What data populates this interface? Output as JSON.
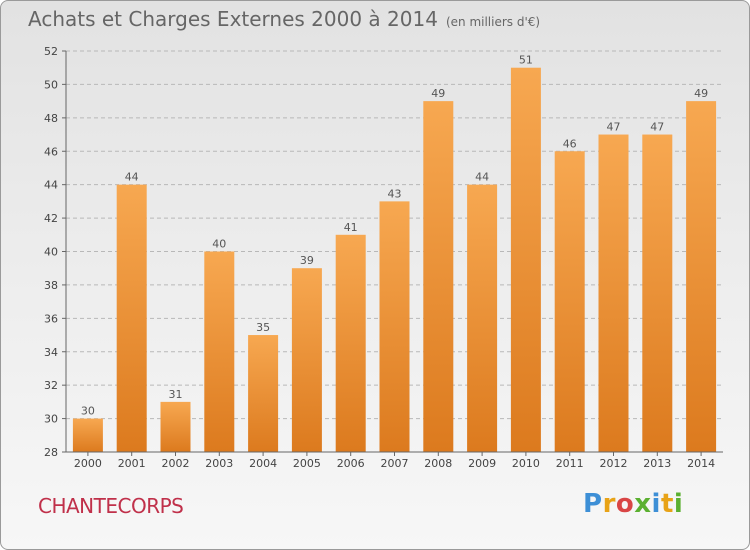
{
  "header": {
    "title": "Achats et Charges Externes 2000 à 2014",
    "unit": "(en milliers d'€)"
  },
  "footer": {
    "commune": "CHANTECORPS",
    "logo_letters": [
      "P",
      "r",
      "o",
      "x",
      "i",
      "t",
      "i"
    ],
    "logo_colors": [
      "#3d8fd6",
      "#e8a317",
      "#d94545",
      "#5bb030",
      "#3d8fd6",
      "#e8a317",
      "#5bb030"
    ]
  },
  "colors": {
    "bar_top": "#f7a851",
    "bar_bottom": "#dc7a1e",
    "grid": "#b8b8b8"
  },
  "chart_data": {
    "type": "bar",
    "title": "Achats et Charges Externes 2000 à 2014",
    "subtitle": "(en milliers d'€)",
    "xlabel": "",
    "ylabel": "",
    "categories": [
      "2000",
      "2001",
      "2002",
      "2003",
      "2004",
      "2005",
      "2006",
      "2007",
      "2008",
      "2009",
      "2010",
      "2011",
      "2012",
      "2013",
      "2014"
    ],
    "values": [
      30,
      44,
      31,
      40,
      35,
      39,
      41,
      43,
      49,
      44,
      51,
      46,
      47,
      47,
      49
    ],
    "ylim": [
      28,
      52
    ],
    "yticks": [
      28,
      30,
      32,
      34,
      36,
      38,
      40,
      42,
      44,
      46,
      48,
      50,
      52
    ],
    "grid": true,
    "legend": "none"
  }
}
